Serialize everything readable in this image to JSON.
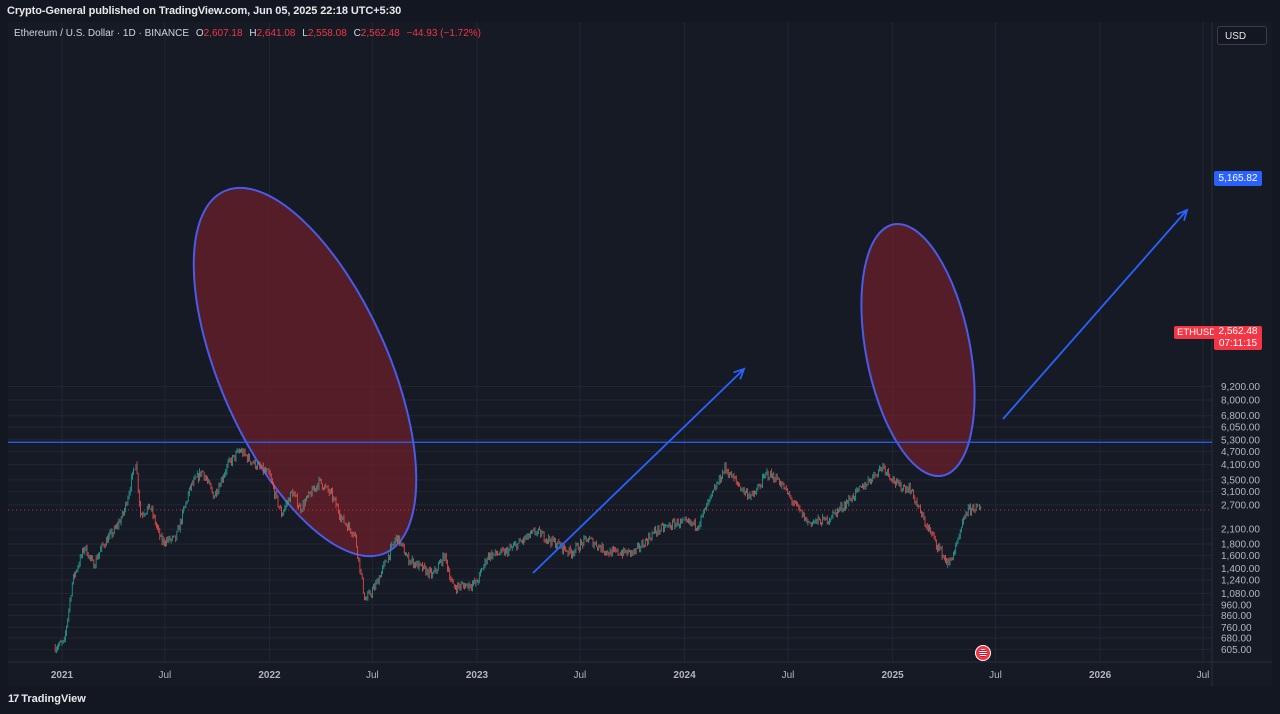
{
  "header": {
    "published": "Crypto-General published on TradingView.com, Jun 05, 2025 22:18 UTC+5:30"
  },
  "legend": {
    "symbol": "Ethereum / U.S. Dollar · 1D · BINANCE",
    "o_label": "O",
    "o_value": "2,607.18",
    "h_label": "H",
    "h_value": "2,641.08",
    "l_label": "L",
    "l_value": "2,558.08",
    "c_label": "C",
    "c_value": "2,562.48",
    "change": "−44.93 (−1.72%)"
  },
  "toolbar": {
    "currency": "USD"
  },
  "price_axis": {
    "horizontal_line_price": "5,165.82",
    "symbol_tag": "ETHUSD",
    "last_price": "2,562.48",
    "countdown": "07:11:15"
  },
  "footer": {
    "brand": "TradingView",
    "brand_mark": "17"
  },
  "colors": {
    "background": "#161a25",
    "up": "#26a69a",
    "down": "#ef5350",
    "drawing": "#2962ff",
    "ellipse_fill": "#6b1f2a",
    "last_price": "#f23645"
  },
  "chart_data": {
    "type": "candlestick",
    "scale": "log",
    "grid": true,
    "yticks": [
      "9,200.00",
      "8,000.00",
      "6,800.00",
      "6,050.00",
      "5,300.00",
      "4,700.00",
      "4,100.00",
      "3,500.00",
      "3,100.00",
      "2,700.00",
      "2,100.00",
      "1,800.00",
      "1,600.00",
      "1,400.00",
      "1,240.00",
      "1,080.00",
      "960.00",
      "860.00",
      "760.00",
      "680.00",
      "605.00"
    ],
    "ytick_values": [
      9200,
      8000,
      6800,
      6050,
      5300,
      4700,
      4100,
      3500,
      3100,
      2700,
      2100,
      1800,
      1600,
      1400,
      1240,
      1080,
      960,
      860,
      760,
      680,
      605
    ],
    "xticks": [
      "2021",
      "Jul",
      "2022",
      "Jul",
      "2023",
      "Jul",
      "2024",
      "Jul",
      "2025",
      "Jul",
      "2026",
      "Jul"
    ],
    "xtick_dates": [
      "2021-01-01",
      "2021-07-01",
      "2022-01-01",
      "2022-07-01",
      "2023-01-01",
      "2023-07-01",
      "2024-01-01",
      "2024-07-01",
      "2025-01-01",
      "2025-07-01",
      "2026-01-01",
      "2026-07-01"
    ],
    "price_path": [
      [
        "2020-12-20",
        620
      ],
      [
        "2021-01-05",
        650
      ],
      [
        "2021-01-20",
        1250
      ],
      [
        "2021-02-10",
        1750
      ],
      [
        "2021-02-25",
        1450
      ],
      [
        "2021-03-15",
        1800
      ],
      [
        "2021-04-05",
        2100
      ],
      [
        "2021-04-20",
        2500
      ],
      [
        "2021-05-11",
        4250
      ],
      [
        "2021-05-19",
        2450
      ],
      [
        "2021-06-05",
        2650
      ],
      [
        "2021-06-25",
        1850
      ],
      [
        "2021-07-20",
        1900
      ],
      [
        "2021-08-15",
        3250
      ],
      [
        "2021-09-05",
        3850
      ],
      [
        "2021-09-25",
        2950
      ],
      [
        "2021-10-20",
        4100
      ],
      [
        "2021-11-10",
        4750
      ],
      [
        "2021-11-28",
        4300
      ],
      [
        "2021-12-10",
        4050
      ],
      [
        "2021-12-31",
        3700
      ],
      [
        "2022-01-22",
        2450
      ],
      [
        "2022-02-10",
        3100
      ],
      [
        "2022-02-24",
        2600
      ],
      [
        "2022-03-30",
        3450
      ],
      [
        "2022-04-20",
        3000
      ],
      [
        "2022-05-10",
        2300
      ],
      [
        "2022-05-31",
        2000
      ],
      [
        "2022-06-18",
        1000
      ],
      [
        "2022-07-05",
        1150
      ],
      [
        "2022-08-13",
        1950
      ],
      [
        "2022-09-01",
        1550
      ],
      [
        "2022-10-15",
        1300
      ],
      [
        "2022-11-05",
        1600
      ],
      [
        "2022-11-20",
        1150
      ],
      [
        "2022-12-31",
        1200
      ],
      [
        "2023-01-20",
        1600
      ],
      [
        "2023-02-20",
        1650
      ],
      [
        "2023-04-15",
        2050
      ],
      [
        "2023-06-15",
        1650
      ],
      [
        "2023-07-15",
        1900
      ],
      [
        "2023-08-20",
        1650
      ],
      [
        "2023-10-05",
        1650
      ],
      [
        "2023-11-10",
        2050
      ],
      [
        "2023-12-20",
        2250
      ],
      [
        "2024-01-25",
        2200
      ],
      [
        "2024-03-12",
        3950
      ],
      [
        "2024-04-15",
        3100
      ],
      [
        "2024-05-01",
        2950
      ],
      [
        "2024-05-25",
        3750
      ],
      [
        "2024-06-15",
        3500
      ],
      [
        "2024-07-05",
        2900
      ],
      [
        "2024-08-05",
        2250
      ],
      [
        "2024-09-06",
        2300
      ],
      [
        "2024-10-01",
        2600
      ],
      [
        "2024-11-12",
        3300
      ],
      [
        "2024-12-15",
        4050
      ],
      [
        "2025-01-10",
        3300
      ],
      [
        "2025-02-01",
        3200
      ],
      [
        "2025-02-25",
        2300
      ],
      [
        "2025-03-15",
        1900
      ],
      [
        "2025-04-09",
        1450
      ],
      [
        "2025-04-25",
        1800
      ],
      [
        "2025-05-10",
        2500
      ],
      [
        "2025-05-25",
        2650
      ],
      [
        "2025-06-05",
        2562
      ]
    ],
    "horizontal_line": 5165.82,
    "last_price": 2562.48
  }
}
